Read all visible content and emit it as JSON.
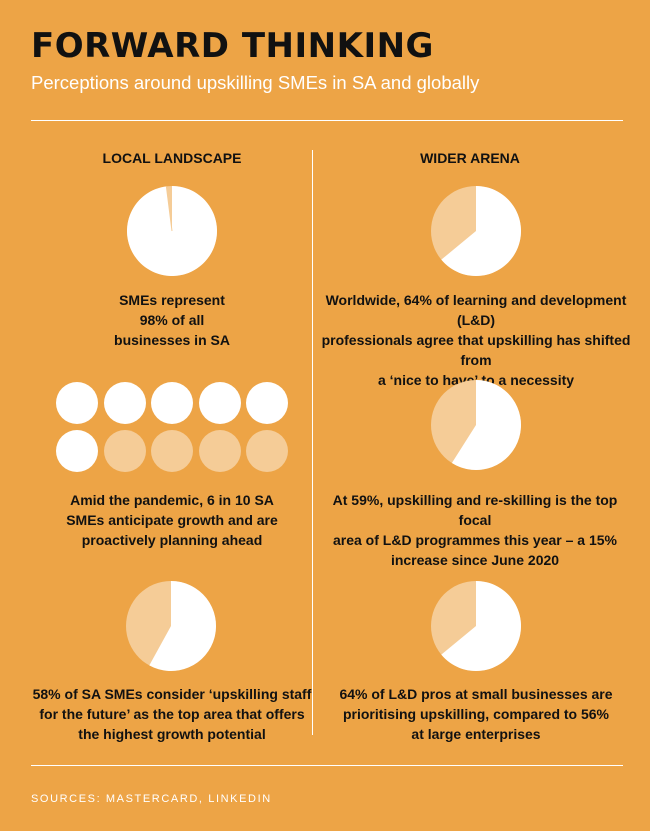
{
  "header": {
    "title": "FORWARD THINKING",
    "subtitle": "Perceptions around upskilling SMEs in SA and globally"
  },
  "columns": {
    "left": "LOCAL LANDSCAPE",
    "right": "WIDER ARENA"
  },
  "local": [
    {
      "caption_lines": [
        "SMEs represent",
        "98% of all",
        "businesses in SA"
      ],
      "pie_percent": 98
    },
    {
      "caption_lines": [
        "Amid the pandemic, 6 in 10 SA",
        "SMEs anticipate growth and are",
        "proactively planning ahead"
      ],
      "dots_total": 10,
      "dots_filled": 6
    },
    {
      "caption_lines": [
        "58% of SA SMEs consider ‘upskilling staff",
        "for the future’ as the top area that offers",
        "the highest growth potential"
      ],
      "pie_percent": 58
    }
  ],
  "wider": [
    {
      "caption_lines": [
        "Worldwide, 64% of learning and development (L&D)",
        "professionals agree that upskilling has shifted from",
        "a ‘nice to have’ to a necessity"
      ],
      "pie_percent": 64
    },
    {
      "caption_lines": [
        "At 59%, upskilling and re-skilling is the top focal",
        "area of L&D programmes this year – a 15%",
        "increase since June 2020"
      ],
      "pie_percent": 59
    },
    {
      "caption_lines": [
        "64% of L&D pros at small businesses are",
        "prioritising upskilling, compared to 56%",
        "at large enterprises"
      ],
      "pie_percent": 64
    }
  ],
  "footer": {
    "sources": "SOURCES: MASTERCARD, LINKEDIN"
  },
  "colors": {
    "background": "#EDA446",
    "pie_fill": "#FFFFFF",
    "pie_remainder": "#F5CC97",
    "text": "#111111"
  }
}
